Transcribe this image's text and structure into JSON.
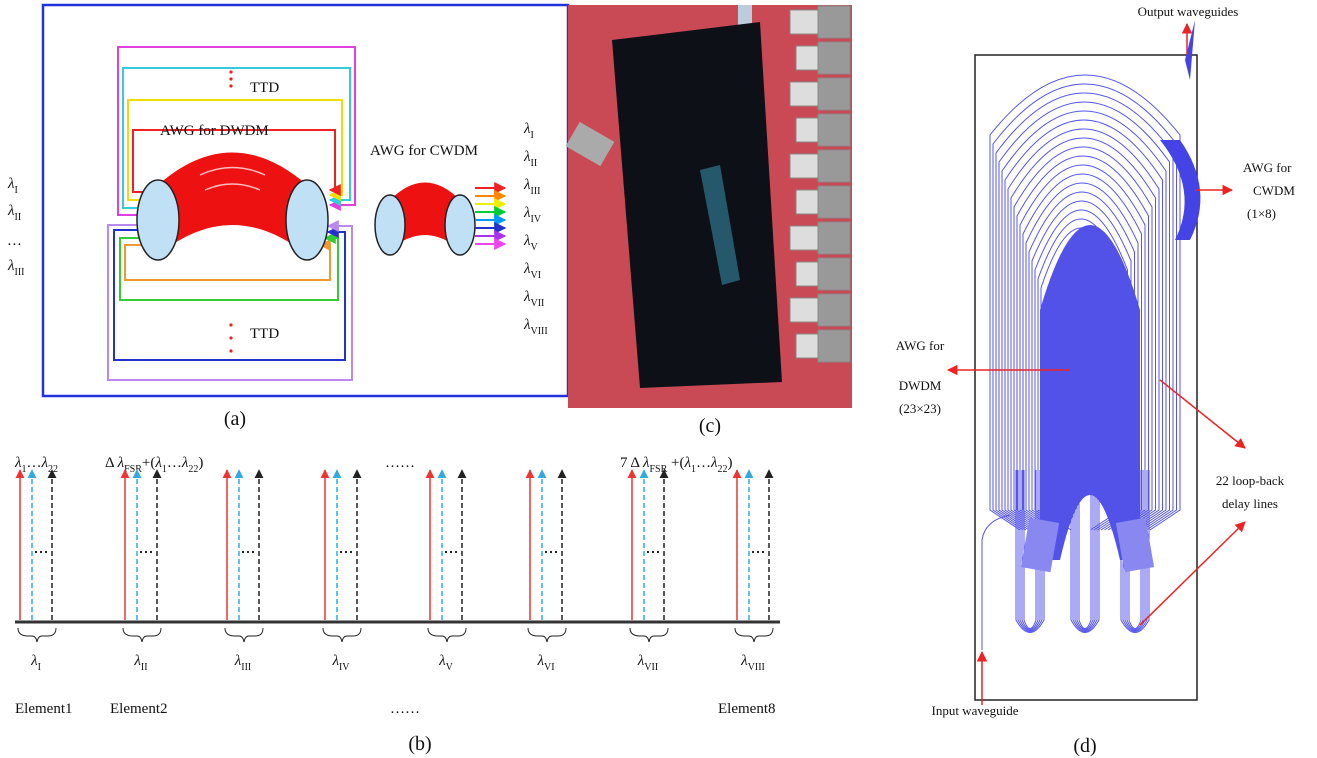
{
  "panel_a": {
    "label": "(a)",
    "ttd": [
      "TTD",
      "TTD"
    ],
    "awg_dwdm": "AWG for DWDM",
    "awg_cwdm": "AWG for CWDM",
    "inputs": [
      {
        "symbol": "λ",
        "sub": "I"
      },
      {
        "symbol": "λ",
        "sub": "II"
      },
      {
        "symbol": "…"
      },
      {
        "symbol": "λ",
        "sub": "III"
      }
    ],
    "outputs": [
      {
        "symbol": "λ",
        "sub": "I"
      },
      {
        "symbol": "λ",
        "sub": "II"
      },
      {
        "symbol": "λ",
        "sub": "III"
      },
      {
        "symbol": "λ",
        "sub": "IV"
      },
      {
        "symbol": "λ",
        "sub": "V"
      },
      {
        "symbol": "λ",
        "sub": "VI"
      },
      {
        "symbol": "λ",
        "sub": "VII"
      },
      {
        "symbol": "λ",
        "sub": "VIII"
      }
    ]
  },
  "panel_b": {
    "label": "(b)",
    "headers": [
      [
        {
          "text": "λ",
          "style": "italic"
        },
        {
          "text": "1",
          "style": "sub"
        },
        {
          "text": "…"
        },
        {
          "text": "λ",
          "style": "italic"
        },
        {
          "text": "22",
          "style": "sub"
        }
      ],
      [
        {
          "text": "Δ "
        },
        {
          "text": "λ",
          "style": "italic"
        },
        {
          "text": "FSR",
          "style": "sub"
        },
        {
          "text": "+("
        },
        {
          "text": "λ",
          "style": "italic"
        },
        {
          "text": "1",
          "style": "sub"
        },
        {
          "text": "…"
        },
        {
          "text": "λ",
          "style": "italic"
        },
        {
          "text": "22",
          "style": "sub"
        },
        {
          "text": ")"
        }
      ],
      [
        {
          "text": "……"
        }
      ],
      [
        {
          "text": "7 Δ "
        },
        {
          "text": "λ",
          "style": "italic"
        },
        {
          "text": "FSR",
          "style": "sub"
        },
        {
          "text": " +("
        },
        {
          "text": "λ",
          "style": "italic"
        },
        {
          "text": "1",
          "style": "sub"
        },
        {
          "text": "…"
        },
        {
          "text": "λ",
          "style": "italic"
        },
        {
          "text": "22",
          "style": "sub"
        },
        {
          "text": ")"
        }
      ]
    ],
    "lambdas": [
      {
        "symbol": "λ",
        "sub": "I"
      },
      {
        "symbol": "λ",
        "sub": "II"
      },
      {
        "symbol": "λ",
        "sub": "III"
      },
      {
        "symbol": "λ",
        "sub": "IV"
      },
      {
        "symbol": "λ",
        "sub": "V"
      },
      {
        "symbol": "λ",
        "sub": "VI"
      },
      {
        "symbol": "λ",
        "sub": "VII"
      },
      {
        "symbol": "λ",
        "sub": "VIII"
      }
    ],
    "elements": [
      "Element1",
      "Element2",
      "……",
      "Element8"
    ]
  },
  "panel_c": {
    "label": "(c)"
  },
  "panel_d": {
    "label": "(d)",
    "output": "Output waveguides",
    "awg_cwdm": [
      "AWG for",
      "CWDM",
      "(1×8)"
    ],
    "awg_dwdm": [
      "AWG for",
      "DWDM",
      "(23×23)"
    ],
    "loops": [
      "22 loop-back",
      "delay lines"
    ],
    "input": "Input waveguide"
  }
}
